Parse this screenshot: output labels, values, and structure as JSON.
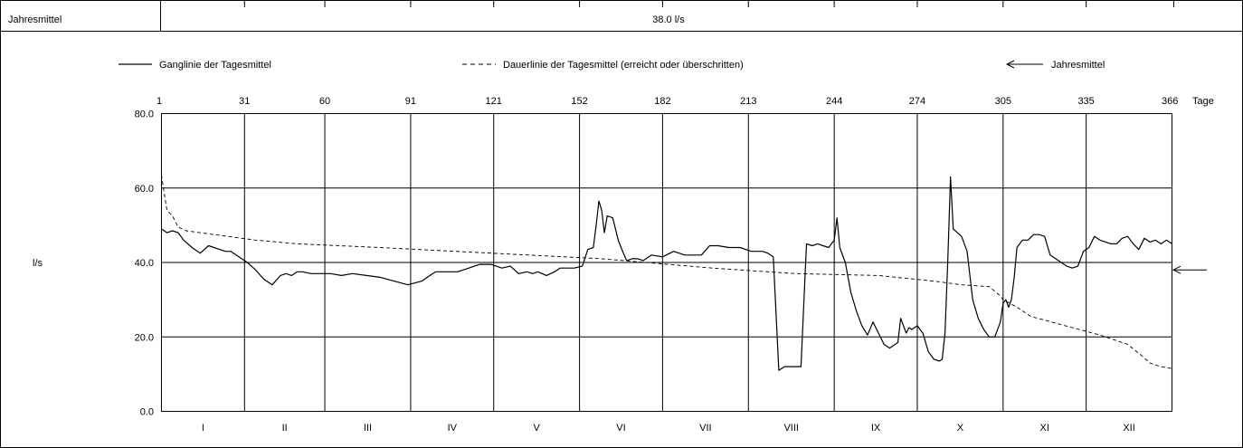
{
  "header": {
    "label": "Jahresmittel",
    "value": "38.0 l/s"
  },
  "legend": {
    "solid": "Ganglinie der Tagesmittel",
    "dashed": "Dauerlinie der Tagesmittel (erreicht oder überschritten)",
    "arrow": "Jahresmittel"
  },
  "chart_data": {
    "type": "line",
    "title": "",
    "ylabel": "l/s",
    "xlabel": "Tage",
    "xlim": [
      1,
      366
    ],
    "ylim": [
      0,
      80
    ],
    "y_ticks": [
      "0.0",
      "20.0",
      "40.0",
      "60.0",
      "80.0"
    ],
    "y_tick_values": [
      0,
      20,
      40,
      60,
      80
    ],
    "x_top_ticks": [
      1,
      31,
      60,
      91,
      121,
      152,
      182,
      213,
      244,
      274,
      305,
      335,
      366
    ],
    "month_labels": [
      "I",
      "II",
      "III",
      "IV",
      "V",
      "VI",
      "VII",
      "VIII",
      "IX",
      "X",
      "XI",
      "XII"
    ],
    "grid": true,
    "annual_mean": 38.0,
    "series": [
      {
        "name": "Ganglinie der Tagesmittel",
        "style": "solid",
        "x": [
          1,
          3,
          5,
          7,
          9,
          12,
          15,
          18,
          20,
          22,
          24,
          26,
          28,
          30,
          32,
          35,
          38,
          41,
          44,
          46,
          48,
          50,
          52,
          55,
          58,
          62,
          66,
          70,
          75,
          80,
          85,
          90,
          95,
          98,
          100,
          102,
          104,
          108,
          112,
          116,
          120,
          124,
          127,
          130,
          133,
          135,
          137,
          140,
          143,
          145,
          147,
          150,
          153,
          155,
          157,
          158,
          159,
          160,
          161,
          162,
          164,
          166,
          167,
          169,
          171,
          173,
          175,
          178,
          182,
          186,
          190,
          194,
          196,
          199,
          202,
          206,
          210,
          214,
          218,
          220,
          222,
          224,
          226,
          228,
          230,
          232,
          234,
          236,
          238,
          240,
          242,
          244,
          245,
          246,
          248,
          250,
          252,
          254,
          256,
          258,
          260,
          262,
          264,
          266,
          267,
          268,
          270,
          271,
          272,
          274,
          276,
          278,
          280,
          282,
          283,
          284,
          285,
          286,
          287,
          290,
          292,
          294,
          296,
          298,
          300,
          302,
          304,
          305,
          306,
          307,
          308,
          309,
          310,
          312,
          314,
          316,
          318,
          320,
          322,
          324,
          326,
          328,
          330,
          332,
          334,
          336,
          338,
          340,
          342,
          344,
          346,
          348,
          350,
          352,
          354,
          356,
          358,
          360,
          362,
          364,
          366
        ],
        "values": [
          49,
          48,
          48.5,
          48,
          46,
          44,
          42.5,
          44.5,
          44,
          43.5,
          43,
          43,
          42,
          41,
          40,
          38,
          35.5,
          34,
          36.5,
          37,
          36.5,
          37.5,
          37.5,
          37,
          37,
          37,
          36.5,
          37,
          36.5,
          36,
          35,
          34,
          35,
          36.5,
          37.5,
          37.5,
          37.5,
          37.5,
          38.5,
          39.5,
          39.5,
          38.5,
          39,
          37,
          37.5,
          37,
          37.5,
          36.5,
          37.5,
          38.5,
          38.5,
          38.5,
          39,
          43.5,
          44,
          50,
          56.5,
          54,
          48,
          52.5,
          52,
          46,
          44,
          40.5,
          41,
          41,
          40.5,
          42,
          41.5,
          43,
          42,
          42,
          42,
          44.5,
          44.5,
          44,
          44,
          43,
          43,
          42.5,
          41.5,
          11,
          12,
          12,
          12,
          12,
          45,
          44.5,
          45,
          44.5,
          44,
          46,
          52,
          44,
          40,
          32,
          27,
          23,
          20.5,
          24,
          21,
          18,
          17,
          18,
          18.5,
          25,
          21,
          22.5,
          22,
          23,
          21,
          16,
          14,
          13.5,
          14,
          21,
          40,
          63,
          49,
          47,
          43,
          30,
          25,
          22,
          20,
          20,
          24,
          29,
          30,
          28,
          30,
          36,
          44,
          46,
          46,
          47.5,
          47.5,
          47,
          42,
          41,
          40,
          39,
          38.5,
          39,
          43,
          44,
          47,
          46,
          45.5,
          45,
          45,
          46.5,
          47,
          45,
          43.5,
          46.5,
          45.5,
          46,
          45,
          46,
          45
        ]
      },
      {
        "name": "Dauerlinie der Tagesmittel (erreicht oder überschritten)",
        "style": "dashed",
        "x": [
          1,
          2,
          3,
          5,
          7,
          10,
          15,
          25,
          35,
          50,
          80,
          120,
          160,
          200,
          230,
          260,
          280,
          290,
          300,
          304,
          305,
          310,
          315,
          320,
          330,
          340,
          350,
          355,
          358,
          360,
          362,
          366
        ],
        "values": [
          63.5,
          58.5,
          54,
          52.5,
          49.5,
          48.5,
          48,
          47,
          46,
          45,
          44,
          42.5,
          41,
          38.5,
          37,
          36.5,
          35,
          34,
          33.5,
          31,
          30,
          28,
          25.5,
          24.5,
          22.5,
          20.5,
          18,
          15,
          13,
          12.5,
          12,
          11.5
        ]
      }
    ]
  }
}
